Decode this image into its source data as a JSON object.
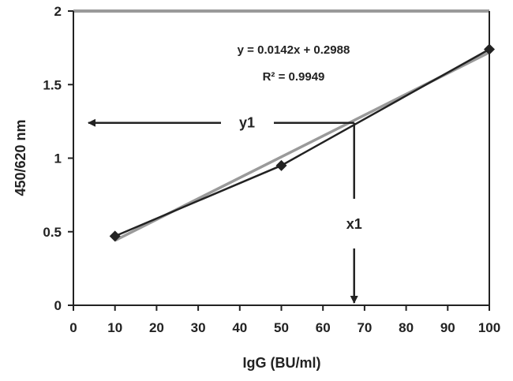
{
  "chart_data": {
    "type": "scatter",
    "title": "",
    "xlabel": "IgG (BU/ml)",
    "ylabel": "450/620 nm",
    "xlim": [
      0,
      100
    ],
    "ylim": [
      0,
      2
    ],
    "xticks": [
      "0",
      "10",
      "20",
      "30",
      "40",
      "50",
      "60",
      "70",
      "80",
      "90",
      "100"
    ],
    "yticks": [
      "0",
      "0.5",
      "1",
      "1.5",
      "2"
    ],
    "grid": false,
    "series": [
      {
        "x": [
          10,
          50,
          100
        ],
        "y": [
          0.47,
          0.95,
          1.74
        ],
        "marker": "diamond",
        "connected": true,
        "color": "#222222"
      }
    ],
    "trendline": {
      "type": "linear",
      "slope": 0.0142,
      "intercept": 0.2988,
      "color": "#9a9a9a",
      "equation": "y = 0.0142x + 0.2988",
      "r_squared": "R² = 0.9949"
    },
    "annotations": {
      "y_marker": {
        "label": "y1",
        "value": 1.24
      },
      "x_marker": {
        "label": "x1",
        "value": 67.5
      }
    },
    "colors": {
      "axis": "#222222",
      "top_border": "#9a9a9a"
    }
  }
}
